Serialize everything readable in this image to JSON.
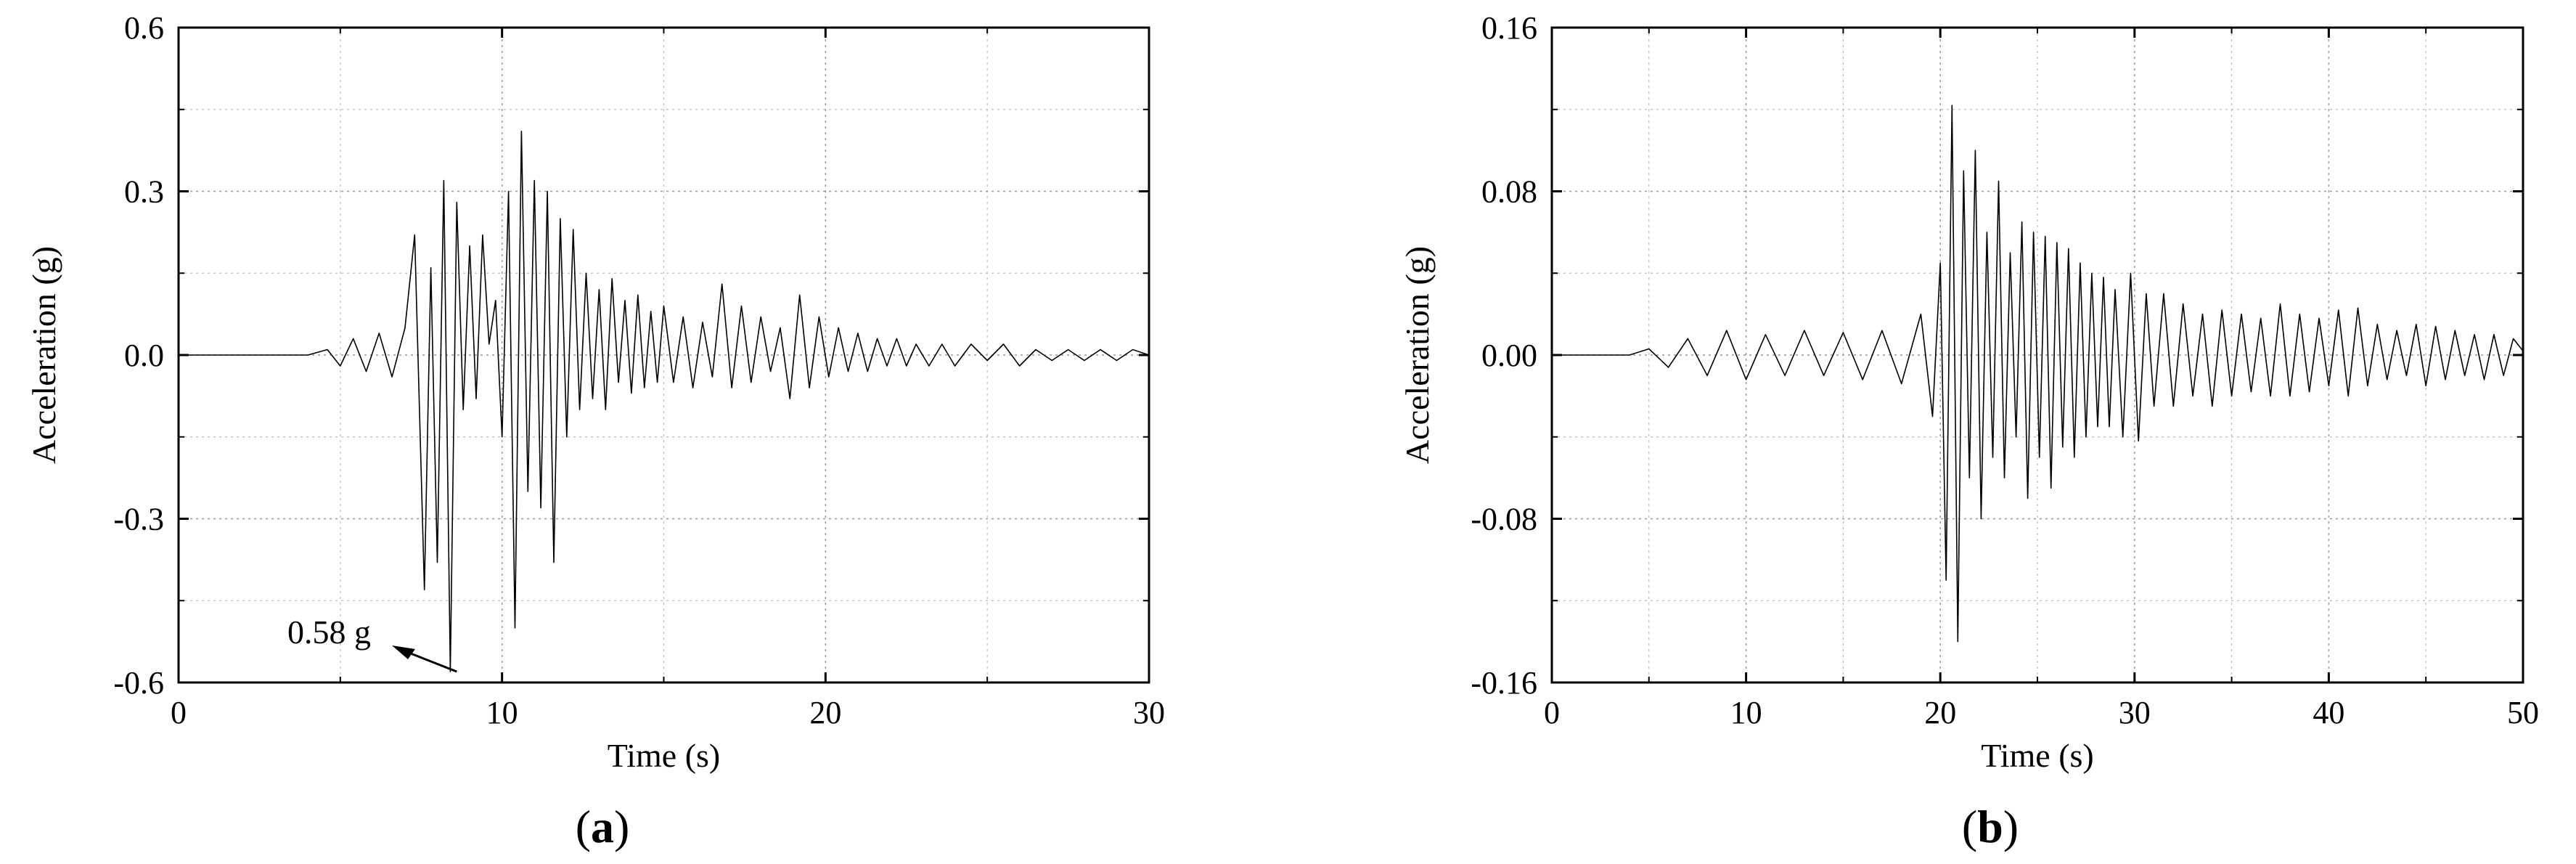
{
  "chart_data": [
    {
      "type": "line",
      "panel_label": "a",
      "xlabel": "Time (s)",
      "ylabel": "Acceleration (g)",
      "xlim": [
        0,
        30
      ],
      "ylim": [
        -0.6,
        0.6
      ],
      "xticks": [
        0,
        10,
        20,
        30
      ],
      "xtick_labels": [
        "0",
        "10",
        "20",
        "30"
      ],
      "yticks": [
        -0.6,
        -0.3,
        0.0,
        0.3,
        0.6
      ],
      "ytick_labels": [
        "-0.6",
        "-0.3",
        "0.0",
        "0.3",
        "0.6"
      ],
      "grid": true,
      "line_color": "#000000",
      "annotation": {
        "text": "0.58 g",
        "x": 8.6,
        "y": -0.58
      },
      "series": [
        {
          "x": [
            0,
            4,
            4.6,
            5.0,
            5.4,
            5.8,
            6.2,
            6.6,
            7.0,
            7.3,
            7.6,
            7.8,
            8.0,
            8.2,
            8.4,
            8.6,
            8.8,
            9.0,
            9.2,
            9.4,
            9.6,
            9.8,
            10.0,
            10.2,
            10.4,
            10.6,
            10.8,
            11.0,
            11.2,
            11.4,
            11.6,
            11.8,
            12.0,
            12.2,
            12.4,
            12.6,
            12.8,
            13.0,
            13.2,
            13.4,
            13.6,
            13.8,
            14.0,
            14.2,
            14.4,
            14.6,
            14.8,
            15.0,
            15.3,
            15.6,
            15.9,
            16.2,
            16.5,
            16.8,
            17.1,
            17.4,
            17.7,
            18.0,
            18.3,
            18.6,
            18.9,
            19.2,
            19.5,
            19.8,
            20.1,
            20.4,
            20.7,
            21.0,
            21.3,
            21.6,
            21.9,
            22.2,
            22.5,
            22.8,
            23.2,
            23.6,
            24.0,
            24.5,
            25.0,
            25.5,
            26.0,
            26.5,
            27.0,
            27.5,
            28.0,
            28.5,
            29.0,
            29.5,
            30.0
          ],
          "y": [
            0.0,
            0.0,
            0.01,
            -0.02,
            0.03,
            -0.03,
            0.04,
            -0.04,
            0.05,
            0.22,
            -0.43,
            0.16,
            -0.38,
            0.32,
            -0.58,
            0.28,
            -0.1,
            0.2,
            -0.08,
            0.22,
            0.02,
            0.1,
            -0.15,
            0.3,
            -0.5,
            0.41,
            -0.25,
            0.32,
            -0.28,
            0.3,
            -0.38,
            0.25,
            -0.15,
            0.23,
            -0.1,
            0.15,
            -0.08,
            0.12,
            -0.1,
            0.14,
            -0.05,
            0.1,
            -0.07,
            0.11,
            -0.06,
            0.08,
            -0.05,
            0.09,
            -0.05,
            0.07,
            -0.06,
            0.06,
            -0.04,
            0.13,
            -0.06,
            0.09,
            -0.05,
            0.07,
            -0.03,
            0.05,
            -0.08,
            0.11,
            -0.06,
            0.07,
            -0.04,
            0.05,
            -0.03,
            0.04,
            -0.03,
            0.03,
            -0.02,
            0.03,
            -0.02,
            0.02,
            -0.02,
            0.02,
            -0.02,
            0.02,
            -0.01,
            0.02,
            -0.02,
            0.01,
            -0.01,
            0.01,
            -0.01,
            0.01,
            -0.01,
            0.01,
            0.0
          ]
        }
      ]
    },
    {
      "type": "line",
      "panel_label": "b",
      "xlabel": "Time (s)",
      "ylabel": "Acceleration (g)",
      "xlim": [
        0,
        50
      ],
      "ylim": [
        -0.16,
        0.16
      ],
      "xticks": [
        0,
        10,
        20,
        30,
        40,
        50
      ],
      "xtick_labels": [
        "0",
        "10",
        "20",
        "30",
        "40",
        "50"
      ],
      "yticks": [
        -0.16,
        -0.08,
        0.0,
        0.08,
        0.16
      ],
      "ytick_labels": [
        "-0.16",
        "-0.08",
        "0.00",
        "0.08",
        "0.16"
      ],
      "grid": true,
      "line_color": "#000000",
      "series": [
        {
          "x": [
            0,
            4,
            5,
            6,
            7,
            8,
            9,
            10,
            11,
            12,
            13,
            14,
            15,
            16,
            17,
            18,
            19,
            19.6,
            20.0,
            20.3,
            20.6,
            20.9,
            21.2,
            21.5,
            21.8,
            22.1,
            22.4,
            22.7,
            23.0,
            23.3,
            23.6,
            23.9,
            24.2,
            24.5,
            24.8,
            25.1,
            25.4,
            25.7,
            26.0,
            26.3,
            26.6,
            26.9,
            27.2,
            27.5,
            27.8,
            28.1,
            28.4,
            28.7,
            29.0,
            29.4,
            29.8,
            30.2,
            30.6,
            31.0,
            31.5,
            32.0,
            32.5,
            33.0,
            33.5,
            34.0,
            34.5,
            35.0,
            35.5,
            36.0,
            36.5,
            37.0,
            37.5,
            38.0,
            38.5,
            39.0,
            39.5,
            40.0,
            40.5,
            41.0,
            41.5,
            42.0,
            42.5,
            43.0,
            43.5,
            44.0,
            44.5,
            45.0,
            45.5,
            46.0,
            46.5,
            47.0,
            47.5,
            48.0,
            48.5,
            49.0,
            49.5,
            50.0
          ],
          "y": [
            0.0,
            0.0,
            0.003,
            -0.006,
            0.008,
            -0.01,
            0.012,
            -0.012,
            0.01,
            -0.01,
            0.012,
            -0.01,
            0.011,
            -0.012,
            0.012,
            -0.014,
            0.02,
            -0.03,
            0.045,
            -0.11,
            0.122,
            -0.14,
            0.09,
            -0.06,
            0.1,
            -0.08,
            0.06,
            -0.05,
            0.085,
            -0.06,
            0.05,
            -0.04,
            0.065,
            -0.07,
            0.06,
            -0.05,
            0.058,
            -0.065,
            0.055,
            -0.045,
            0.052,
            -0.05,
            0.045,
            -0.04,
            0.04,
            -0.035,
            0.038,
            -0.035,
            0.032,
            -0.04,
            0.04,
            -0.042,
            0.03,
            -0.025,
            0.03,
            -0.025,
            0.025,
            -0.02,
            0.02,
            -0.025,
            0.022,
            -0.02,
            0.02,
            -0.018,
            0.018,
            -0.02,
            0.025,
            -0.02,
            0.02,
            -0.018,
            0.018,
            -0.015,
            0.022,
            -0.02,
            0.023,
            -0.015,
            0.015,
            -0.012,
            0.012,
            -0.01,
            0.015,
            -0.015,
            0.014,
            -0.012,
            0.012,
            -0.01,
            0.01,
            -0.012,
            0.01,
            -0.01,
            0.008,
            0.002
          ]
        }
      ]
    }
  ]
}
